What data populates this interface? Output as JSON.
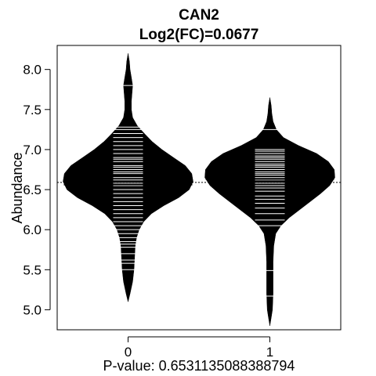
{
  "chart_data": {
    "type": "beanplot",
    "title": "CAN2",
    "subtitle": "Log2(FC)=0.0677",
    "xlabel": "P-value: 0.6531135088388794",
    "ylabel": "Abundance",
    "categories": [
      "0",
      "1"
    ],
    "ylim": [
      4.75,
      8.3
    ],
    "yticks": [
      5.0,
      5.5,
      6.0,
      6.5,
      7.0,
      7.5,
      8.0
    ],
    "ytick_labels": [
      "5.0",
      "5.5",
      "6.0",
      "6.5",
      "7.0",
      "7.5",
      "8.0"
    ],
    "overall_mean": 6.59,
    "series": [
      {
        "category": "0",
        "mean": 6.56,
        "density": [
          [
            5.1,
            0.0
          ],
          [
            5.2,
            0.03
          ],
          [
            5.35,
            0.07
          ],
          [
            5.5,
            0.09
          ],
          [
            5.65,
            0.1
          ],
          [
            5.8,
            0.11
          ],
          [
            5.9,
            0.13
          ],
          [
            6.0,
            0.17
          ],
          [
            6.1,
            0.24
          ],
          [
            6.2,
            0.36
          ],
          [
            6.3,
            0.55
          ],
          [
            6.4,
            0.78
          ],
          [
            6.5,
            0.94
          ],
          [
            6.6,
            1.0
          ],
          [
            6.7,
            0.98
          ],
          [
            6.8,
            0.88
          ],
          [
            6.9,
            0.7
          ],
          [
            7.0,
            0.52
          ],
          [
            7.1,
            0.37
          ],
          [
            7.2,
            0.25
          ],
          [
            7.3,
            0.14
          ],
          [
            7.4,
            0.07
          ],
          [
            7.5,
            0.05
          ],
          [
            7.6,
            0.05
          ],
          [
            7.7,
            0.06
          ],
          [
            7.8,
            0.07
          ],
          [
            7.9,
            0.05
          ],
          [
            8.0,
            0.03
          ],
          [
            8.1,
            0.02
          ],
          [
            8.2,
            0.0
          ]
        ],
        "points": [
          5.05,
          5.5,
          5.58,
          5.62,
          5.7,
          5.78,
          5.82,
          5.85,
          5.9,
          5.95,
          6.0,
          6.05,
          6.1,
          6.15,
          6.2,
          6.25,
          6.3,
          6.35,
          6.4,
          6.45,
          6.5,
          6.55,
          6.58,
          6.62,
          6.65,
          6.7,
          6.72,
          6.75,
          6.78,
          6.8,
          6.85,
          6.88,
          6.9,
          6.95,
          7.0,
          7.05,
          7.1,
          7.15,
          7.2,
          7.25,
          7.28,
          7.8
        ]
      },
      {
        "category": "1",
        "mean": 6.63,
        "density": [
          [
            4.8,
            0.0
          ],
          [
            4.9,
            0.02
          ],
          [
            5.0,
            0.04
          ],
          [
            5.2,
            0.05
          ],
          [
            5.4,
            0.05
          ],
          [
            5.6,
            0.05
          ],
          [
            5.8,
            0.06
          ],
          [
            5.95,
            0.09
          ],
          [
            6.05,
            0.17
          ],
          [
            6.15,
            0.3
          ],
          [
            6.25,
            0.46
          ],
          [
            6.35,
            0.62
          ],
          [
            6.45,
            0.78
          ],
          [
            6.55,
            0.92
          ],
          [
            6.65,
            1.0
          ],
          [
            6.75,
            0.99
          ],
          [
            6.85,
            0.9
          ],
          [
            6.95,
            0.72
          ],
          [
            7.05,
            0.44
          ],
          [
            7.15,
            0.21
          ],
          [
            7.25,
            0.1
          ],
          [
            7.35,
            0.05
          ],
          [
            7.45,
            0.03
          ],
          [
            7.55,
            0.02
          ],
          [
            7.65,
            0.0
          ]
        ],
        "points": [
          5.17,
          5.49,
          6.05,
          6.12,
          6.2,
          6.27,
          6.33,
          6.38,
          6.42,
          6.48,
          6.52,
          6.55,
          6.58,
          6.62,
          6.65,
          6.68,
          6.7,
          6.72,
          6.75,
          6.78,
          6.8,
          6.82,
          6.85,
          6.88,
          6.9,
          6.92,
          6.95,
          6.98,
          7.0,
          7.25
        ]
      }
    ],
    "colors": {
      "bean": "#000000",
      "points": "#ffffff",
      "frame": "#000000"
    }
  }
}
